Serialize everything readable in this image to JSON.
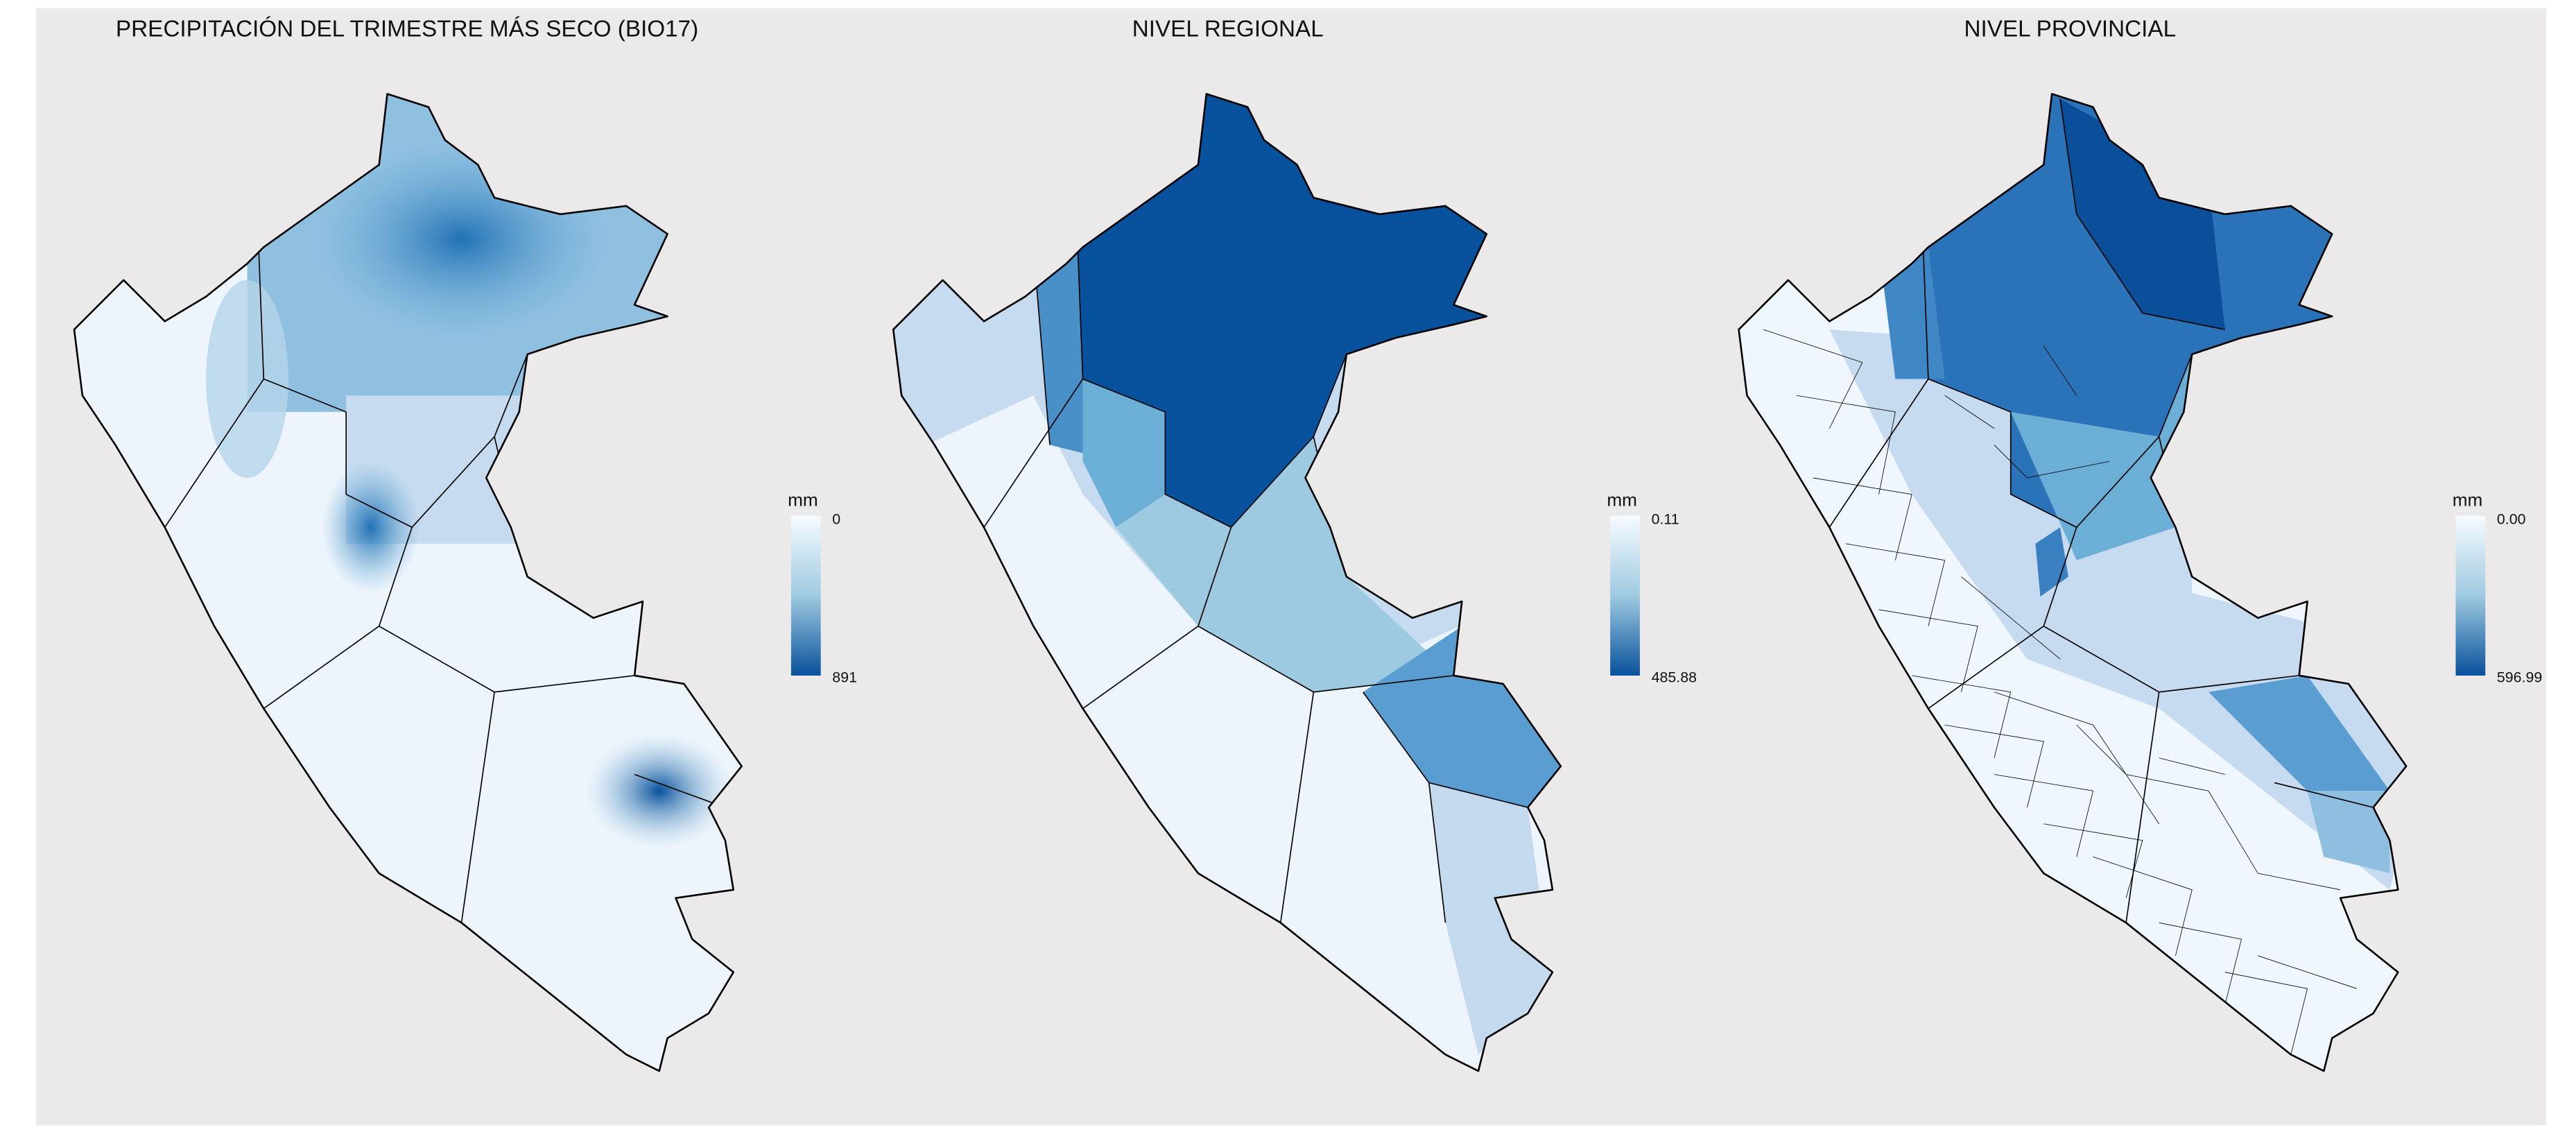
{
  "panels": [
    {
      "title": "PRECIPITACIÓN DEL TRIMESTRE MÁS SECO (BIO17)",
      "legend": {
        "title": "mm",
        "min": "0",
        "max": "891"
      }
    },
    {
      "title": "NIVEL REGIONAL",
      "legend": {
        "title": "mm",
        "min": "0.11",
        "max": "485.88"
      }
    },
    {
      "title": "NIVEL PROVINCIAL",
      "legend": {
        "title": "mm",
        "min": "0.00",
        "max": "596.99"
      }
    }
  ]
}
